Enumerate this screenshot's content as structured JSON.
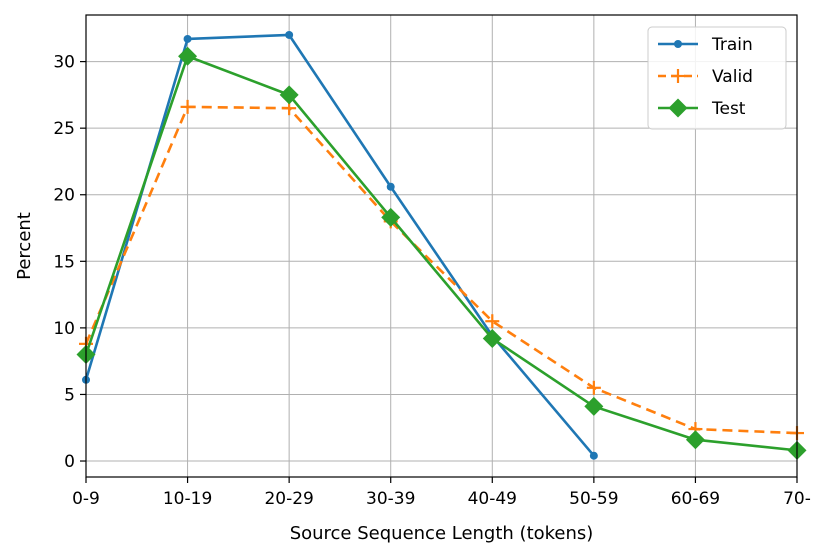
{
  "chart_data": {
    "type": "line",
    "title": "",
    "xlabel": "Source Sequence Length (tokens)",
    "ylabel": "Percent",
    "categories": [
      "0-9",
      "10-19",
      "20-29",
      "30-39",
      "40-49",
      "50-59",
      "60-69",
      "70-"
    ],
    "ylim": [
      -1.2,
      33.5
    ],
    "yticks": [
      0,
      5,
      10,
      15,
      20,
      25,
      30
    ],
    "grid": true,
    "legend_position": "top-right",
    "series": [
      {
        "name": "Train",
        "color": "#1f77b4",
        "line_style": "solid",
        "marker": "dot",
        "values": [
          6.1,
          31.7,
          32.0,
          20.6,
          9.4,
          0.4,
          null,
          null
        ]
      },
      {
        "name": "Valid",
        "color": "#ff7f0e",
        "line_style": "dashed",
        "marker": "plus",
        "values": [
          8.8,
          26.6,
          26.5,
          18.0,
          10.5,
          5.5,
          2.4,
          2.1
        ]
      },
      {
        "name": "Test",
        "color": "#2ca02c",
        "line_style": "solid",
        "marker": "diamond",
        "values": [
          8.0,
          30.4,
          27.5,
          18.3,
          9.2,
          4.1,
          1.6,
          0.8
        ]
      }
    ]
  }
}
